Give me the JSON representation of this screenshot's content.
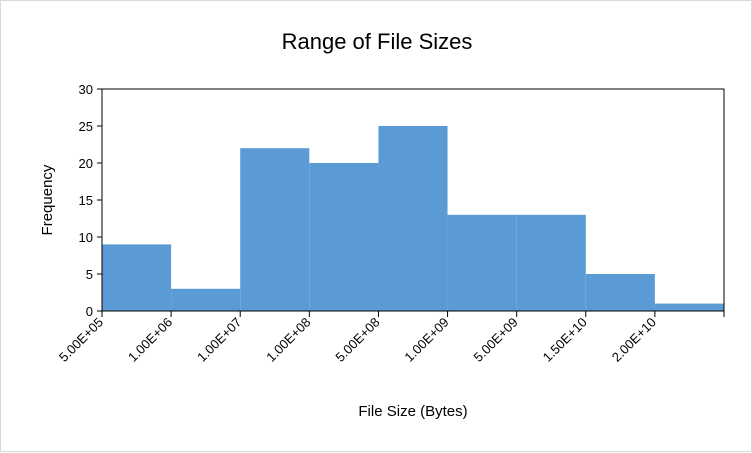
{
  "chart_data": {
    "type": "bar",
    "title": "Range of File Sizes",
    "xlabel": "File Size (Bytes)",
    "ylabel": "Frequency",
    "ylim": [
      0,
      30
    ],
    "yticks": [
      "0",
      "5",
      "10",
      "15",
      "20",
      "25",
      "30"
    ],
    "categories": [
      "5.00E+05",
      "1.00E+06",
      "1.00E+07",
      "1.00E+08",
      "5.00E+08",
      "1.00E+09",
      "5.00E+09",
      "1.50E+10",
      "2.00E+10"
    ],
    "values": [
      9,
      3,
      22,
      20,
      25,
      13,
      13,
      5,
      1
    ],
    "bar_color": "#5b9bd5",
    "grid": false,
    "legend": "none"
  }
}
